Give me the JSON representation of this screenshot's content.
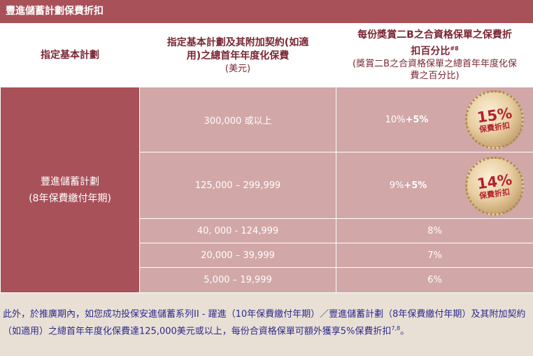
{
  "title": "豐進儲蓄計劃保費折扣",
  "headers": {
    "col1": "指定基本計劃",
    "col2_main": "指定基本計劃及其附加契約(如適用)之總首年年度化保費",
    "col2_sub": "(美元)",
    "col3_main": "每份獎賞二B之合資格保單之保費折扣百分比",
    "col3_sup1": "#",
    "col3_sup2": "8",
    "col3_sub": "(獎賞二B之合資格保單之總首年年度化保費之百分比)"
  },
  "plan": {
    "name": "豐進儲蓄計劃",
    "term": "(8年保費繳付年期)"
  },
  "rows": [
    {
      "premium": "300,000 或以上",
      "base": "10%",
      "extra": "+5%",
      "badge_pct": "15%",
      "badge_label": "保費折扣"
    },
    {
      "premium": "125,000 – 299,999",
      "base": "9%",
      "extra": "+5%",
      "badge_pct": "14%",
      "badge_label": "保費折扣"
    },
    {
      "premium": "40, 000 - 124,999",
      "base": "8%"
    },
    {
      "premium": "20,000 – 39,999",
      "base": "7%"
    },
    {
      "premium": "5,000 – 19,999",
      "base": "6%"
    }
  ],
  "footer": {
    "text": "此外，於推廣期內，如您成功投保安進儲蓄系列II - 躍進（10年保費繳付年期）／豐進儲蓄計劃（8年保費繳付年期）及其附加契約（如適用）之總首年年度化保費達125,000美元或以上，每份合資格保單可額外獲享5%保費折扣",
    "sup": "7,8",
    "end": "。"
  }
}
